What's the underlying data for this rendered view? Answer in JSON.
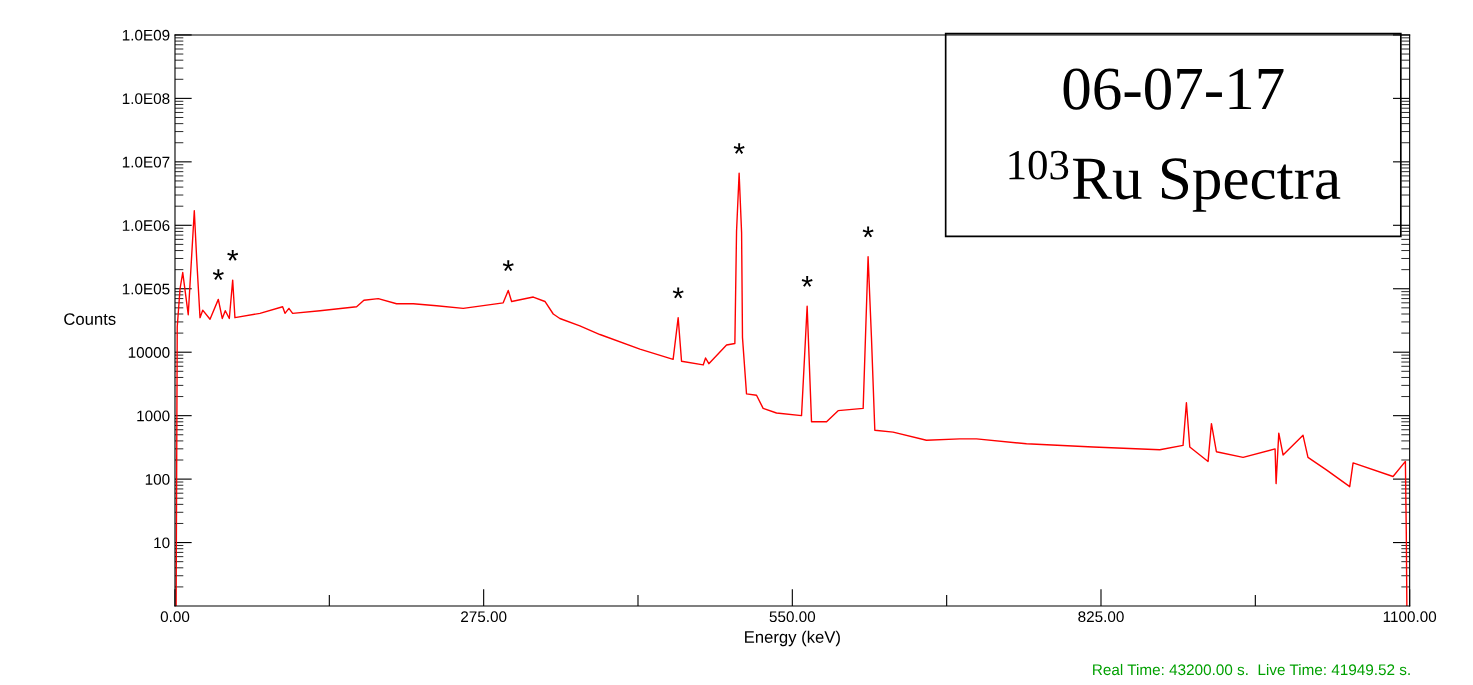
{
  "chart_data": {
    "type": "line",
    "title": "06-07-17",
    "subtitle": "$^{103}$Ru Spectra",
    "xlabel": "Energy (keV)",
    "ylabel": "Counts",
    "series": [
      {
        "color": "#ff0000",
        "x": [
          1,
          2,
          4.5,
          6.9,
          11.8,
          17.2,
          19.3,
          22.3,
          24.7,
          31.2,
          38.6,
          42.1,
          44.8,
          48.4,
          51.4,
          53.4,
          75.7,
          95.9,
          98,
          101.5,
          104.8,
          129.2,
          161.8,
          168.3,
          181.1,
          197.4,
          212.3,
          233.1,
          256.8,
          292.4,
          296.9,
          299.9,
          319.2,
          329.6,
          337,
          342.9,
          360.7,
          378.6,
          414.2,
          443.8,
          448.3,
          451.3,
          470.6,
          472.7,
          475.6,
          491.4,
          498.8,
          500.3,
          502.6,
          504.8,
          505.6,
          509.2,
          518.1,
          524,
          535.9,
          558.2,
          563.2,
          567.1,
          580.5,
          590.8,
          613.1,
          617.5,
          620.5,
          623.5,
          639.8,
          669.5,
          699.2,
          714.1,
          758.6,
          818,
          877.4,
          898.1,
          901.1,
          904.1,
          920.4,
          923.4,
          927.8,
          951.6,
          980.1,
          981,
          983.4,
          987.2,
          1005,
          1009.4,
          1025.8,
          1046.6,
          1049.6,
          1085.2,
          1096.2,
          1097,
          1097.5
        ],
        "values": [
          1,
          25000,
          100000,
          180000,
          39000,
          1700000,
          300000,
          35000,
          46000,
          33000,
          68000,
          34000,
          45000,
          34000,
          137000,
          35000,
          41000,
          52000,
          41000,
          49000,
          41000,
          45000,
          52000,
          66000,
          70000,
          58000,
          58000,
          54000,
          49000,
          60000,
          94000,
          63000,
          74000,
          63000,
          40000,
          34000,
          26000,
          19000,
          11200,
          7700,
          35000,
          7200,
          6300,
          8100,
          6600,
          13000,
          13700,
          800000,
          6600000,
          760000,
          17000,
          2200,
          2100,
          1300,
          1100,
          1000,
          53000,
          800,
          800,
          1200,
          1300,
          320000,
          17000,
          590,
          550,
          410,
          430,
          430,
          360,
          320,
          290,
          340,
          1600,
          320,
          190,
          750,
          270,
          220,
          300,
          85,
          530,
          240,
          490,
          220,
          140,
          76,
          180,
          110,
          190,
          14,
          1
        ]
      }
    ],
    "log": "y",
    "xlim": [
      0,
      1100
    ],
    "ylim": [
      1,
      1000000000
    ],
    "xticks": [
      {
        "value": 0,
        "label": "0.00"
      },
      {
        "value": 137.5,
        "label": null
      },
      {
        "value": 275,
        "label": "275.00"
      },
      {
        "value": 412.5,
        "label": null
      },
      {
        "value": 550,
        "label": "550.00"
      },
      {
        "value": 687.5,
        "label": null
      },
      {
        "value": 825,
        "label": "825.00"
      },
      {
        "value": 962.5,
        "label": null
      },
      {
        "value": 1100,
        "label": "1100.00"
      }
    ],
    "yticks": [
      {
        "value": 10,
        "label": "10"
      },
      {
        "value": 100,
        "label": "100"
      },
      {
        "value": 1000,
        "label": "1000"
      },
      {
        "value": 10000,
        "label": "10000"
      },
      {
        "value": 100000,
        "label": "1.0E05"
      },
      {
        "value": 1000000,
        "label": "1.0E06"
      },
      {
        "value": 10000000,
        "label": "1.0E07"
      },
      {
        "value": 100000000,
        "label": "1.0E08"
      },
      {
        "value": 1000000000,
        "label": "1.0E09"
      }
    ],
    "grid": false,
    "legend": false,
    "annotations": [
      {
        "text": "*",
        "x": 38.6,
        "y": 68000
      },
      {
        "text": "*",
        "x": 51.4,
        "y": 137000
      },
      {
        "text": "*",
        "x": 296.9,
        "y": 94000
      },
      {
        "text": "*",
        "x": 448.3,
        "y": 35000
      },
      {
        "text": "*",
        "x": 502.6,
        "y": 6600000
      },
      {
        "text": "*",
        "x": 563.2,
        "y": 53000
      },
      {
        "text": "*",
        "x": 617.5,
        "y": 320000
      },
      "Real Time: 43200.00 s.  Live Time: 41949.52 s."
    ]
  }
}
